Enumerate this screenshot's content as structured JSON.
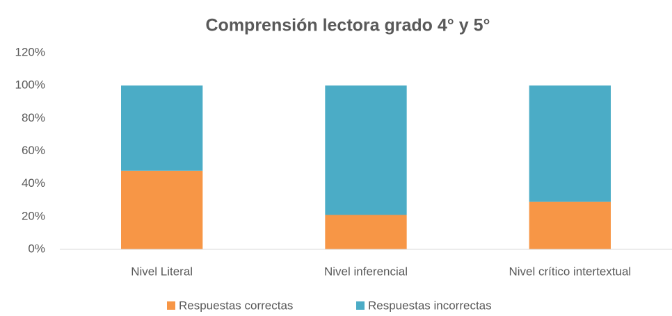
{
  "chart_data": {
    "type": "stacked_bar",
    "title": "Comprensión lectora grado 4° y 5°",
    "categories": [
      "Nivel Literal",
      "Nivel inferencial",
      "Nivel crítico intertextual"
    ],
    "series": [
      {
        "name": "Respuestas correctas",
        "color": "#f79646",
        "values": [
          48,
          21,
          29
        ]
      },
      {
        "name": "Respuestas incorrectas",
        "color": "#4bacc6",
        "values": [
          52,
          79,
          71
        ]
      }
    ],
    "ylim": [
      0,
      120
    ],
    "yticks": [
      {
        "value": 0,
        "label": "0%"
      },
      {
        "value": 20,
        "label": "20%"
      },
      {
        "value": 40,
        "label": "40%"
      },
      {
        "value": 60,
        "label": "60%"
      },
      {
        "value": 80,
        "label": "80%"
      },
      {
        "value": 100,
        "label": "100%"
      },
      {
        "value": 120,
        "label": "120%"
      }
    ],
    "grid": false,
    "legend": "bottom"
  }
}
